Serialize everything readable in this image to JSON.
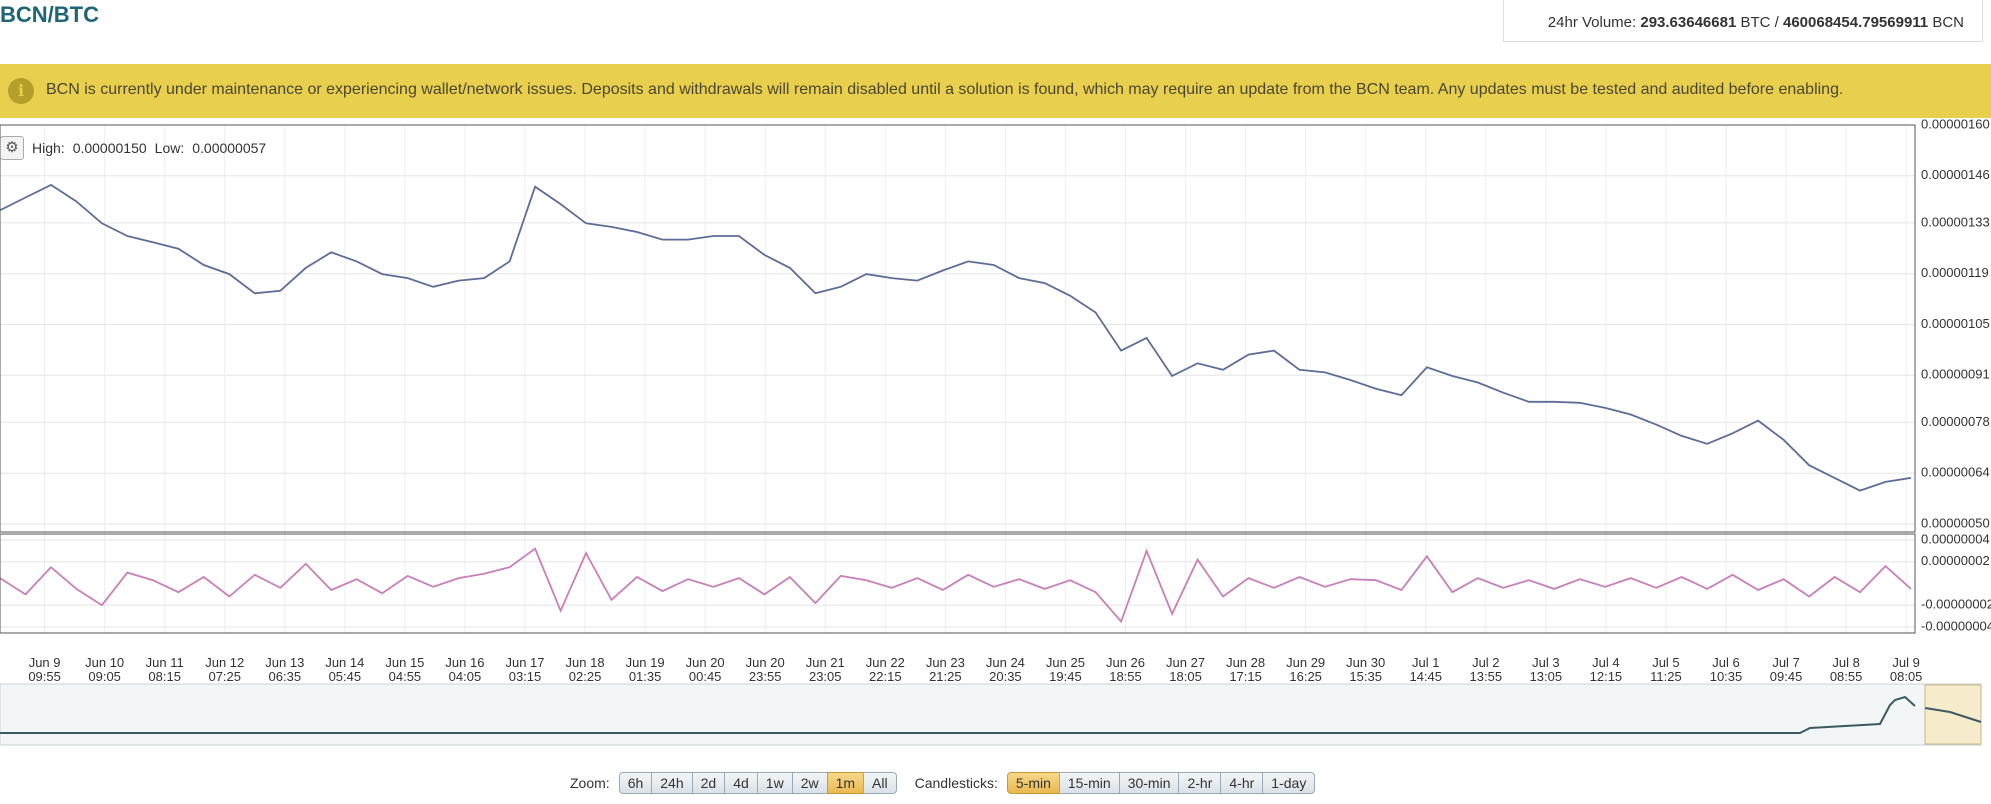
{
  "header": {
    "pair": "BCN/BTC",
    "volume_label": "24hr Volume:",
    "volume_btc": "293.63646681",
    "btc_unit": "BTC /",
    "volume_bcn": "460068454.79569911",
    "bcn_unit": "BCN"
  },
  "banner": {
    "message": "BCN is currently under maintenance or experiencing wallet/network issues. Deposits and withdrawals will remain disabled until a solution is found, which may require an update from the BCN team. Any updates must be tested and audited before enabling."
  },
  "chart_data": [
    {
      "type": "line",
      "high_label": "High:",
      "high": "0.00000150",
      "low_label": "Low:",
      "low": "0.00000057",
      "ylim": [
        5e-07,
        1.6e-06
      ],
      "yticks": [
        {
          "value": 1.6e-06,
          "label": "0.00000160"
        },
        {
          "value": 1.46e-06,
          "label": "0.00000146"
        },
        {
          "value": 1.33e-06,
          "label": "0.00000133"
        },
        {
          "value": 1.19e-06,
          "label": "0.00000119"
        },
        {
          "value": 1.05e-06,
          "label": "0.00000105"
        },
        {
          "value": 9.1e-07,
          "label": "0.00000091"
        },
        {
          "value": 7.8e-07,
          "label": "0.00000078"
        },
        {
          "value": 6.4e-07,
          "label": "0.00000064"
        },
        {
          "value": 5e-07,
          "label": "0.00000050"
        }
      ],
      "grid": true,
      "xticks": [
        {
          "date": "Jun 9",
          "time": "09:55"
        },
        {
          "date": "Jun 10",
          "time": "09:05"
        },
        {
          "date": "Jun 11",
          "time": "08:15"
        },
        {
          "date": "Jun 12",
          "time": "07:25"
        },
        {
          "date": "Jun 13",
          "time": "06:35"
        },
        {
          "date": "Jun 14",
          "time": "05:45"
        },
        {
          "date": "Jun 15",
          "time": "04:55"
        },
        {
          "date": "Jun 16",
          "time": "04:05"
        },
        {
          "date": "Jun 17",
          "time": "03:15"
        },
        {
          "date": "Jun 18",
          "time": "02:25"
        },
        {
          "date": "Jun 19",
          "time": "01:35"
        },
        {
          "date": "Jun 20",
          "time": "00:45"
        },
        {
          "date": "Jun 20",
          "time": "23:55"
        },
        {
          "date": "Jun 21",
          "time": "23:05"
        },
        {
          "date": "Jun 22",
          "time": "22:15"
        },
        {
          "date": "Jun 23",
          "time": "21:25"
        },
        {
          "date": "Jun 24",
          "time": "20:35"
        },
        {
          "date": "Jun 25",
          "time": "19:45"
        },
        {
          "date": "Jun 26",
          "time": "18:55"
        },
        {
          "date": "Jun 27",
          "time": "18:05"
        },
        {
          "date": "Jun 28",
          "time": "17:15"
        },
        {
          "date": "Jun 29",
          "time": "16:25"
        },
        {
          "date": "Jun 30",
          "time": "15:35"
        },
        {
          "date": "Jul 1",
          "time": "14:45"
        },
        {
          "date": "Jul 2",
          "time": "13:55"
        },
        {
          "date": "Jul 3",
          "time": "13:05"
        },
        {
          "date": "Jul 4",
          "time": "12:15"
        },
        {
          "date": "Jul 5",
          "time": "11:25"
        },
        {
          "date": "Jul 6",
          "time": "10:35"
        },
        {
          "date": "Jul 7",
          "time": "09:45"
        },
        {
          "date": "Jul 8",
          "time": "08:55"
        },
        {
          "date": "Jul 9",
          "time": "08:05"
        }
      ],
      "series": [
        {
          "color": "#5d6d9a",
          "values": [
            1.365e-06,
            1.4e-06,
            1.435e-06,
            1.389e-06,
            1.329e-06,
            1.294e-06,
            1.277e-06,
            1.259e-06,
            1.214e-06,
            1.189e-06,
            1.136e-06,
            1.143e-06,
            1.206e-06,
            1.249e-06,
            1.224e-06,
            1.189e-06,
            1.178e-06,
            1.154e-06,
            1.171e-06,
            1.178e-06,
            1.224e-06,
            1.43e-06,
            1.382e-06,
            1.329e-06,
            1.319e-06,
            1.305e-06,
            1.284e-06,
            1.284e-06,
            1.294e-06,
            1.294e-06,
            1.242e-06,
            1.206e-06,
            1.136e-06,
            1.154e-06,
            1.189e-06,
            1.178e-06,
            1.171e-06,
            1.199e-06,
            1.224e-06,
            1.214e-06,
            1.178e-06,
            1.164e-06,
            1.129e-06,
            1.083e-06,
            9.78e-07,
            1.013e-06,
            9.08e-07,
            9.43e-07,
            9.25e-07,
            9.67e-07,
            9.78e-07,
            9.25e-07,
            9.18e-07,
            8.97e-07,
            8.73e-07,
            8.55e-07,
            9.32e-07,
            9.08e-07,
            8.9e-07,
            8.62e-07,
            8.37e-07,
            8.37e-07,
            8.34e-07,
            8.2e-07,
            8.02e-07,
            7.74e-07,
            7.43e-07,
            7.21e-07,
            7.5e-07,
            7.85e-07,
            7.32e-07,
            6.62e-07,
            6.27e-07,
            5.92e-07,
            6.16e-07,
            6.27e-07
          ]
        }
      ]
    },
    {
      "type": "line",
      "ylim": [
        -4.6e-08,
        4.6e-08
      ],
      "yticks": [
        {
          "value": 4e-08,
          "label": "0.00000004"
        },
        {
          "value": 2e-08,
          "label": "0.00000002"
        },
        {
          "value": -2e-08,
          "label": "-0.00000002"
        },
        {
          "value": -4e-08,
          "label": "-0.00000004"
        }
      ],
      "series": [
        {
          "color": "#c97fb8",
          "values": [
            5e-09,
            -1e-08,
            1.5e-08,
            -5e-09,
            -2e-08,
            1e-08,
            3e-09,
            -8e-09,
            6e-09,
            -1.2e-08,
            8e-09,
            -4e-09,
            1.8e-08,
            -6e-09,
            4e-09,
            -9e-09,
            7e-09,
            -3e-09,
            5e-09,
            9e-09,
            1.5e-08,
            3.2e-08,
            -2.5e-08,
            2.8e-08,
            -1.5e-08,
            6e-09,
            -7e-09,
            4e-09,
            -3e-09,
            5e-09,
            -1e-08,
            6e-09,
            -1.8e-08,
            7e-09,
            3e-09,
            -4e-09,
            5e-09,
            -6e-09,
            8e-09,
            -3e-09,
            4e-09,
            -5e-09,
            3e-09,
            -8e-09,
            -3.5e-08,
            3e-08,
            -2.8e-08,
            2.2e-08,
            -1.2e-08,
            5e-09,
            -4e-09,
            6e-09,
            -3e-09,
            4e-09,
            3e-09,
            -6e-09,
            2.5e-08,
            -8e-09,
            5e-09,
            -4e-09,
            3e-09,
            -5e-09,
            4e-09,
            -3e-09,
            5e-09,
            -4e-09,
            6e-09,
            -5e-09,
            8e-09,
            -6e-09,
            4e-09,
            -1.2e-08,
            6e-09,
            -8e-09,
            1.6e-08,
            -5e-09
          ]
        }
      ]
    }
  ],
  "controls": {
    "zoom_label": "Zoom:",
    "zoom": [
      {
        "label": "6h",
        "selected": false
      },
      {
        "label": "24h",
        "selected": false
      },
      {
        "label": "2d",
        "selected": false
      },
      {
        "label": "4d",
        "selected": false
      },
      {
        "label": "1w",
        "selected": false
      },
      {
        "label": "2w",
        "selected": false
      },
      {
        "label": "1m",
        "selected": true
      },
      {
        "label": "All",
        "selected": false
      }
    ],
    "candles_label": "Candlesticks:",
    "candles": [
      {
        "label": "5-min",
        "selected": true
      },
      {
        "label": "15-min",
        "selected": false
      },
      {
        "label": "30-min",
        "selected": false
      },
      {
        "label": "2-hr",
        "selected": false
      },
      {
        "label": "4-hr",
        "selected": false
      },
      {
        "label": "1-day",
        "selected": false
      }
    ]
  }
}
